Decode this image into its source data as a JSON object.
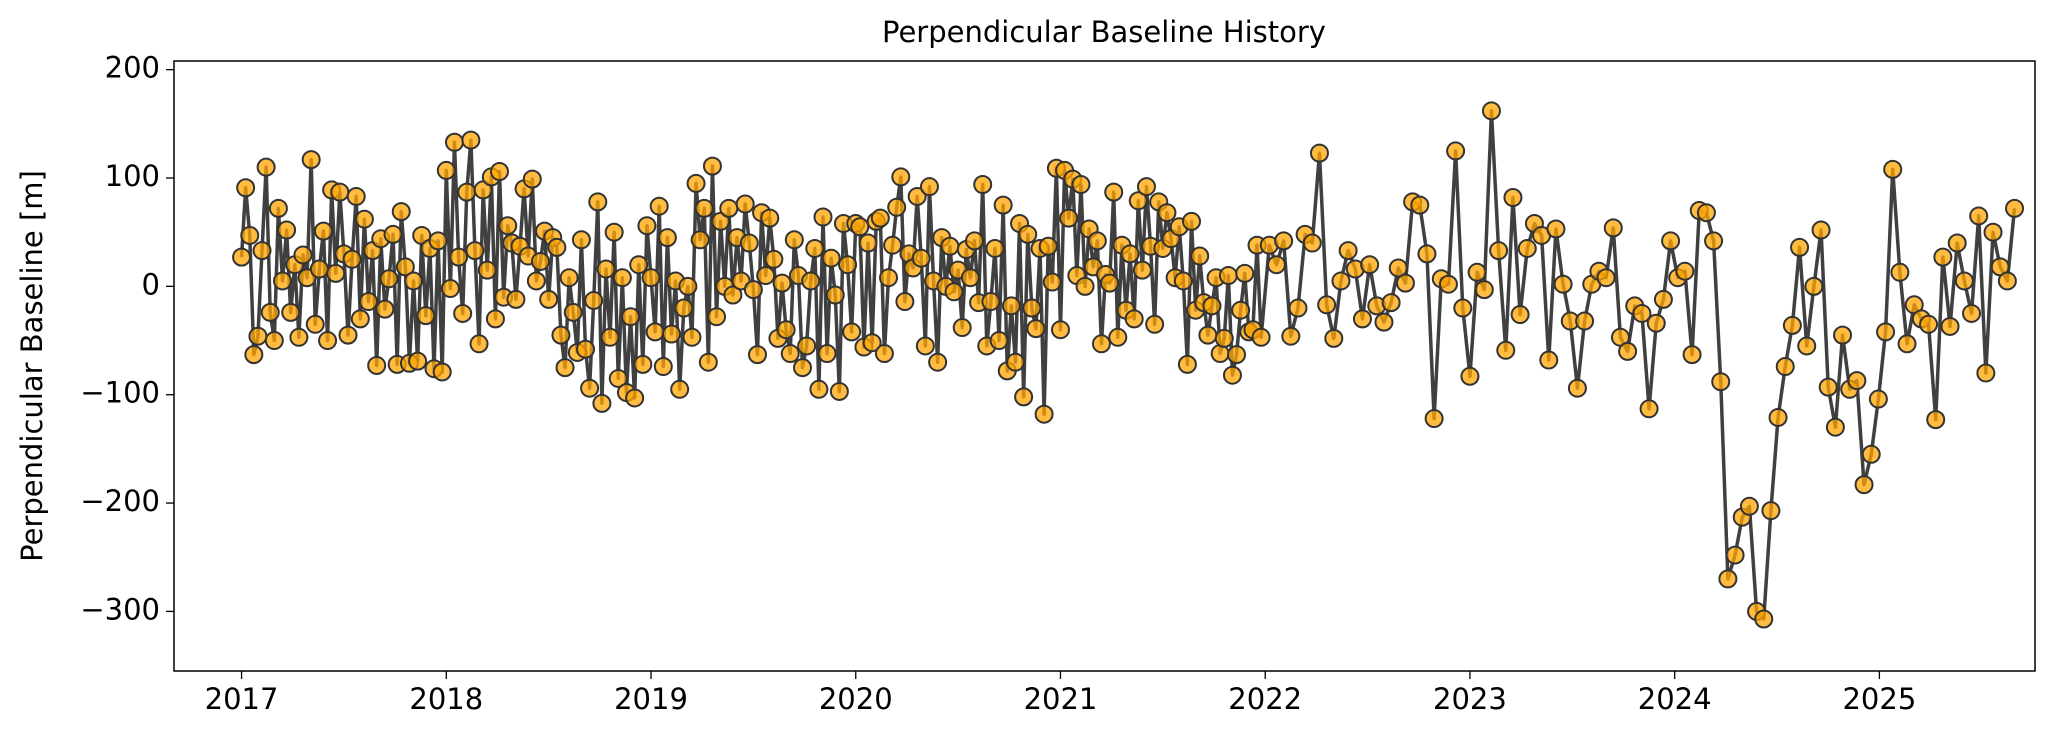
{
  "chart_data": {
    "type": "line",
    "title": "Perpendicular Baseline History",
    "y_label": "Perpendicular Baseline [m]",
    "xlim": [
      2016.67,
      2025.76
    ],
    "xticks": [
      2017,
      2018,
      2019,
      2020,
      2021,
      2022,
      2023,
      2024,
      2025
    ],
    "ylim": [
      -355,
      208
    ],
    "yticks": [
      {
        "value": -300,
        "label": "−300"
      },
      {
        "value": -200,
        "label": "−200"
      },
      {
        "value": -100,
        "label": "−100"
      },
      0,
      100,
      200
    ],
    "grid": false,
    "x": [
      2017,
      2017.02,
      2017.04,
      2017.06,
      2017.08,
      2017.1,
      2017.12,
      2017.14,
      2017.16,
      2017.18,
      2017.2,
      2017.22,
      2017.24,
      2017.26,
      2017.28,
      2017.3,
      2017.32,
      2017.34,
      2017.36,
      2017.38,
      2017.4,
      2017.42,
      2017.44,
      2017.46,
      2017.48,
      2017.5,
      2017.52,
      2017.54,
      2017.56,
      2017.58,
      2017.6,
      2017.62,
      2017.64,
      2017.66,
      2017.68,
      2017.7,
      2017.72,
      2017.74,
      2017.76,
      2017.78,
      2017.8,
      2017.82,
      2017.84,
      2017.86,
      2017.88,
      2017.9,
      2017.92,
      2017.94,
      2017.96,
      2017.98,
      2018,
      2018.02,
      2018.04,
      2018.06,
      2018.08,
      2018.1,
      2018.12,
      2018.14,
      2018.16,
      2018.18,
      2018.2,
      2018.22,
      2018.24,
      2018.26,
      2018.28,
      2018.3,
      2018.32,
      2018.34,
      2018.36,
      2018.38,
      2018.4,
      2018.42,
      2018.44,
      2018.46,
      2018.48,
      2018.5,
      2018.52,
      2018.54,
      2018.56,
      2018.58,
      2018.6,
      2018.62,
      2018.64,
      2018.66,
      2018.68,
      2018.7,
      2018.72,
      2018.74,
      2018.76,
      2018.78,
      2018.8,
      2018.82,
      2018.84,
      2018.86,
      2018.88,
      2018.9,
      2018.92,
      2018.94,
      2018.96,
      2018.98,
      2019,
      2019.02,
      2019.04,
      2019.06,
      2019.08,
      2019.1,
      2019.12,
      2019.14,
      2019.16,
      2019.18,
      2019.2,
      2019.22,
      2019.24,
      2019.26,
      2019.28,
      2019.3,
      2019.32,
      2019.34,
      2019.36,
      2019.38,
      2019.4,
      2019.42,
      2019.44,
      2019.46,
      2019.48,
      2019.5,
      2019.52,
      2019.54,
      2019.56,
      2019.58,
      2019.6,
      2019.62,
      2019.64,
      2019.66,
      2019.68,
      2019.7,
      2019.72,
      2019.74,
      2019.76,
      2019.78,
      2019.8,
      2019.82,
      2019.84,
      2019.86,
      2019.88,
      2019.9,
      2019.92,
      2019.94,
      2019.96,
      2019.98,
      2020,
      2020.02,
      2020.04,
      2020.06,
      2020.08,
      2020.1,
      2020.12,
      2020.14,
      2020.16,
      2020.18,
      2020.2,
      2020.22,
      2020.24,
      2020.26,
      2020.28,
      2020.3,
      2020.32,
      2020.34,
      2020.36,
      2020.38,
      2020.4,
      2020.42,
      2020.44,
      2020.46,
      2020.48,
      2020.5,
      2020.52,
      2020.54,
      2020.56,
      2020.58,
      2020.6,
      2020.62,
      2020.64,
      2020.66,
      2020.68,
      2020.7,
      2020.72,
      2020.74,
      2020.76,
      2020.78,
      2020.8,
      2020.82,
      2020.84,
      2020.86,
      2020.88,
      2020.9,
      2020.92,
      2020.94,
      2020.96,
      2020.98,
      2021,
      2021.02,
      2021.04,
      2021.06,
      2021.08,
      2021.1,
      2021.12,
      2021.14,
      2021.16,
      2021.18,
      2021.2,
      2021.22,
      2021.24,
      2021.26,
      2021.28,
      2021.3,
      2021.32,
      2021.34,
      2021.36,
      2021.38,
      2021.4,
      2021.42,
      2021.44,
      2021.46,
      2021.48,
      2021.5,
      2021.52,
      2021.54,
      2021.56,
      2021.58,
      2021.6,
      2021.62,
      2021.64,
      2021.66,
      2021.68,
      2021.7,
      2021.72,
      2021.74,
      2021.76,
      2021.78,
      2021.8,
      2021.82,
      2021.84,
      2021.86,
      2021.88,
      2021.9,
      2021.92,
      2021.94,
      2021.96,
      2021.98,
      2022.02,
      2022.055,
      2022.09,
      2022.125,
      2022.16,
      2022.195,
      2022.23,
      2022.265,
      2022.3,
      2022.335,
      2022.37,
      2022.405,
      2022.44,
      2022.475,
      2022.51,
      2022.545,
      2022.58,
      2022.615,
      2022.65,
      2022.685,
      2022.72,
      2022.755,
      2022.79,
      2022.825,
      2022.86,
      2022.895,
      2022.93,
      2022.965,
      2023,
      2023.035,
      2023.07,
      2023.105,
      2023.14,
      2023.175,
      2023.21,
      2023.245,
      2023.28,
      2023.315,
      2023.35,
      2023.385,
      2023.42,
      2023.455,
      2023.49,
      2023.525,
      2023.56,
      2023.595,
      2023.63,
      2023.665,
      2023.7,
      2023.735,
      2023.77,
      2023.805,
      2023.84,
      2023.875,
      2023.91,
      2023.945,
      2023.98,
      2024.015,
      2024.05,
      2024.085,
      2024.12,
      2024.155,
      2024.19,
      2024.225,
      2024.26,
      2024.295,
      2024.33,
      2024.365,
      2024.4,
      2024.435,
      2024.47,
      2024.505,
      2024.54,
      2024.575,
      2024.61,
      2024.645,
      2024.68,
      2024.715,
      2024.75,
      2024.785,
      2024.82,
      2024.855,
      2024.89,
      2024.925,
      2024.96,
      2024.995,
      2025.03,
      2025.065,
      2025.1,
      2025.135,
      2025.17,
      2025.205,
      2025.24,
      2025.275,
      2025.31,
      2025.345,
      2025.38,
      2025.415,
      2025.45,
      2025.485,
      2025.52,
      2025.555,
      2025.59,
      2025.625,
      2025.66
    ],
    "series": [
      {
        "color": "#404040",
        "marker_color": "#ffa500",
        "marker_edge": "#333333",
        "values": [
          27,
          91,
          47,
          -63,
          -46,
          33,
          110,
          -24,
          -50,
          72,
          5,
          52,
          -24,
          20,
          -47,
          29,
          8,
          117,
          -35,
          16,
          51,
          -50,
          89,
          12,
          87,
          30,
          -45,
          25,
          83,
          -30,
          62,
          -14,
          33,
          -73,
          44,
          -21,
          7,
          48,
          -72,
          69,
          18,
          -71,
          5,
          -69,
          47,
          -27,
          35,
          -76,
          42,
          -79,
          107,
          -2,
          133,
          27,
          -25,
          87,
          135,
          33,
          -53,
          89,
          15,
          101,
          -30,
          106,
          -10,
          56,
          40,
          -12,
          37,
          90,
          28,
          99,
          5,
          23,
          51,
          -12,
          45,
          36,
          -45,
          -75,
          8,
          -24,
          -61,
          43,
          -58,
          -94,
          -13,
          78,
          -108,
          16,
          -47,
          50,
          -85,
          8,
          -98,
          -28,
          -103,
          20,
          -72,
          56,
          8,
          -42,
          74,
          -74,
          45,
          -44,
          5,
          -95,
          -20,
          0,
          -47,
          95,
          43,
          72,
          -70,
          111,
          -28,
          60,
          0,
          72,
          -8,
          45,
          5,
          76,
          40,
          -3,
          -63,
          68,
          10,
          63,
          25,
          -48,
          3,
          -40,
          -62,
          43,
          10,
          -75,
          -55,
          5,
          35,
          -95,
          64,
          -62,
          26,
          -8,
          -97,
          58,
          20,
          -42,
          58,
          55,
          -56,
          40,
          -52,
          60,
          63,
          -62,
          8,
          38,
          73,
          101,
          -14,
          30,
          17,
          83,
          26,
          -55,
          92,
          5,
          -70,
          45,
          0,
          37,
          -5,
          15,
          -38,
          34,
          8,
          42,
          -15,
          94,
          -55,
          -14,
          35,
          -50,
          75,
          -78,
          -18,
          -70,
          58,
          -102,
          48,
          -20,
          -39,
          35,
          -118,
          37,
          4,
          109,
          -40,
          107,
          63,
          99,
          10,
          94,
          0,
          53,
          18,
          42,
          -53,
          11,
          3,
          87,
          -47,
          38,
          -22,
          30,
          -30,
          79,
          15,
          92,
          37,
          -35,
          78,
          35,
          68,
          44,
          8,
          55,
          5,
          -72,
          60,
          -22,
          28,
          -15,
          -45,
          -18,
          8,
          -62,
          -48,
          10,
          -82,
          -63,
          -22,
          12,
          -42,
          -40,
          38,
          -47,
          38,
          20,
          42,
          -46,
          -20,
          48,
          40,
          123,
          -17,
          -48,
          5,
          33,
          16,
          -30,
          20,
          -18,
          -33,
          -15,
          17,
          3,
          78,
          75,
          30,
          -122,
          7,
          2,
          125,
          -20,
          -83,
          13,
          -3,
          162,
          33,
          -59,
          82,
          -26,
          35,
          58,
          47,
          -68,
          53,
          2,
          -32,
          -94,
          -32,
          2,
          14,
          8,
          54,
          -47,
          -60,
          -18,
          -25,
          -113,
          -34,
          -12,
          42,
          8,
          14,
          -63,
          70,
          68,
          42,
          -88,
          -270,
          -248,
          -213,
          -203,
          -300,
          -307,
          -207,
          -121,
          -74,
          -36,
          36,
          -55,
          0,
          52,
          -93,
          -130,
          -45,
          -95,
          -87,
          -183,
          -155,
          -104,
          -42,
          108,
          13,
          -53,
          -17,
          -30,
          -35,
          -123,
          27,
          -37,
          40,
          5,
          -25,
          65,
          -80,
          50,
          18,
          5,
          72
        ]
      }
    ]
  }
}
